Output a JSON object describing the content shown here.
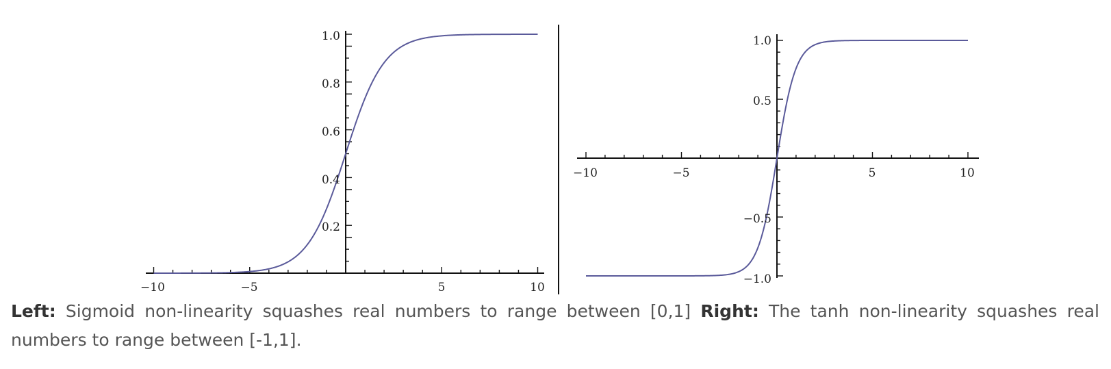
{
  "chart_data": [
    {
      "type": "line",
      "title": "",
      "xlabel": "",
      "ylabel": "",
      "xlim": [
        -10.5,
        10.5
      ],
      "ylim": [
        0,
        1.0
      ],
      "function": "sigmoid",
      "x": [
        -10,
        -8,
        -6,
        -5,
        -4,
        -3,
        -2,
        -1,
        0,
        1,
        2,
        3,
        4,
        5,
        6,
        8,
        10
      ],
      "series": [
        {
          "values": [
            4.54e-05,
            0.000335,
            0.00247,
            0.00669,
            0.018,
            0.0474,
            0.119,
            0.269,
            0.5,
            0.731,
            0.881,
            0.953,
            0.982,
            0.993,
            0.9975,
            0.99966,
            0.99995
          ]
        }
      ],
      "x_ticks": [
        "−10",
        "−5",
        "5",
        "10"
      ],
      "y_ticks": [
        "0.2",
        "0.4",
        "0.6",
        "0.8",
        "1.0"
      ],
      "color": "#5a5a9a",
      "grid": false
    },
    {
      "type": "line",
      "title": "",
      "xlabel": "",
      "ylabel": "",
      "xlim": [
        -10.5,
        10.5
      ],
      "ylim": [
        -1.0,
        1.0
      ],
      "function": "tanh",
      "x": [
        -10,
        -8,
        -6,
        -4,
        -3,
        -2,
        -1,
        0,
        1,
        2,
        3,
        4,
        6,
        8,
        10
      ],
      "series": [
        {
          "values": [
            -1.0,
            -1.0,
            -0.99999,
            -0.9993,
            -0.995,
            -0.964,
            -0.762,
            0,
            0.762,
            0.964,
            0.995,
            0.9993,
            0.99999,
            1.0,
            1.0
          ]
        }
      ],
      "x_ticks": [
        "−10",
        "−5",
        "5",
        "10"
      ],
      "y_ticks": [
        "−1.0",
        "−0.5",
        "0.5",
        "1.0"
      ],
      "color": "#5a5a9a",
      "grid": false
    }
  ],
  "caption": {
    "left_label": "Left:",
    "left_text": " Sigmoid non-linearity squashes real numbers to range between [0,1] ",
    "right_label": "Right:",
    "right_text": " The tanh non-linearity squashes real numbers to range between [-1,1]."
  }
}
